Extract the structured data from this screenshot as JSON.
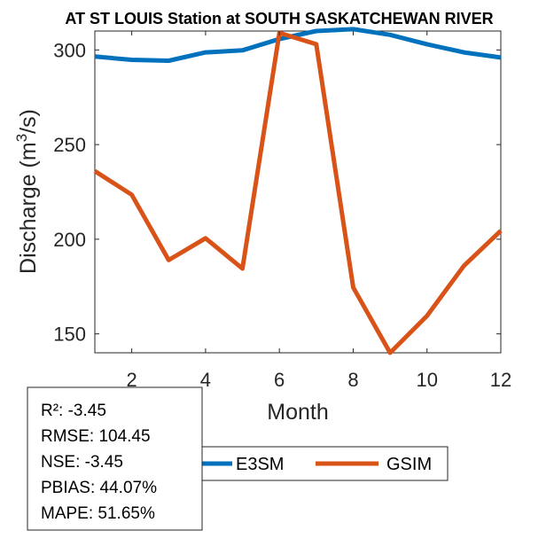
{
  "chart_data": {
    "type": "line",
    "title": "AT ST LOUIS  Station at  SOUTH SASKATCHEWAN RIVER",
    "xlabel": "Month",
    "ylabel_main": "Discharge (m",
    "ylabel_sup": "3",
    "ylabel_tail": "/s)",
    "xlim": [
      1,
      12
    ],
    "ylim": [
      140,
      310
    ],
    "xticks": [
      2,
      4,
      6,
      8,
      10,
      12
    ],
    "yticks": [
      150,
      200,
      250,
      300
    ],
    "grid": false,
    "x": [
      1,
      2,
      3,
      4,
      5,
      6,
      7,
      8,
      9,
      10,
      11,
      12
    ],
    "series": [
      {
        "name": "E3SM",
        "color": "#0072BD",
        "values": [
          296.5,
          294.8,
          294.3,
          298.7,
          299.8,
          305.8,
          310,
          311,
          308,
          303,
          298.7,
          296
        ]
      },
      {
        "name": "GSIM",
        "color": "#D95319",
        "values": [
          236,
          223.5,
          189,
          200.5,
          184.5,
          309,
          303,
          174.5,
          140,
          159.5,
          186,
          204.5
        ]
      }
    ],
    "legend_position": "bottom"
  },
  "stats": {
    "r2": "R²: -3.45",
    "rmse": "RMSE: 104.45",
    "nse": "NSE: -3.45",
    "pbias": "PBIAS: 44.07%",
    "mape": "MAPE: 51.65%"
  }
}
